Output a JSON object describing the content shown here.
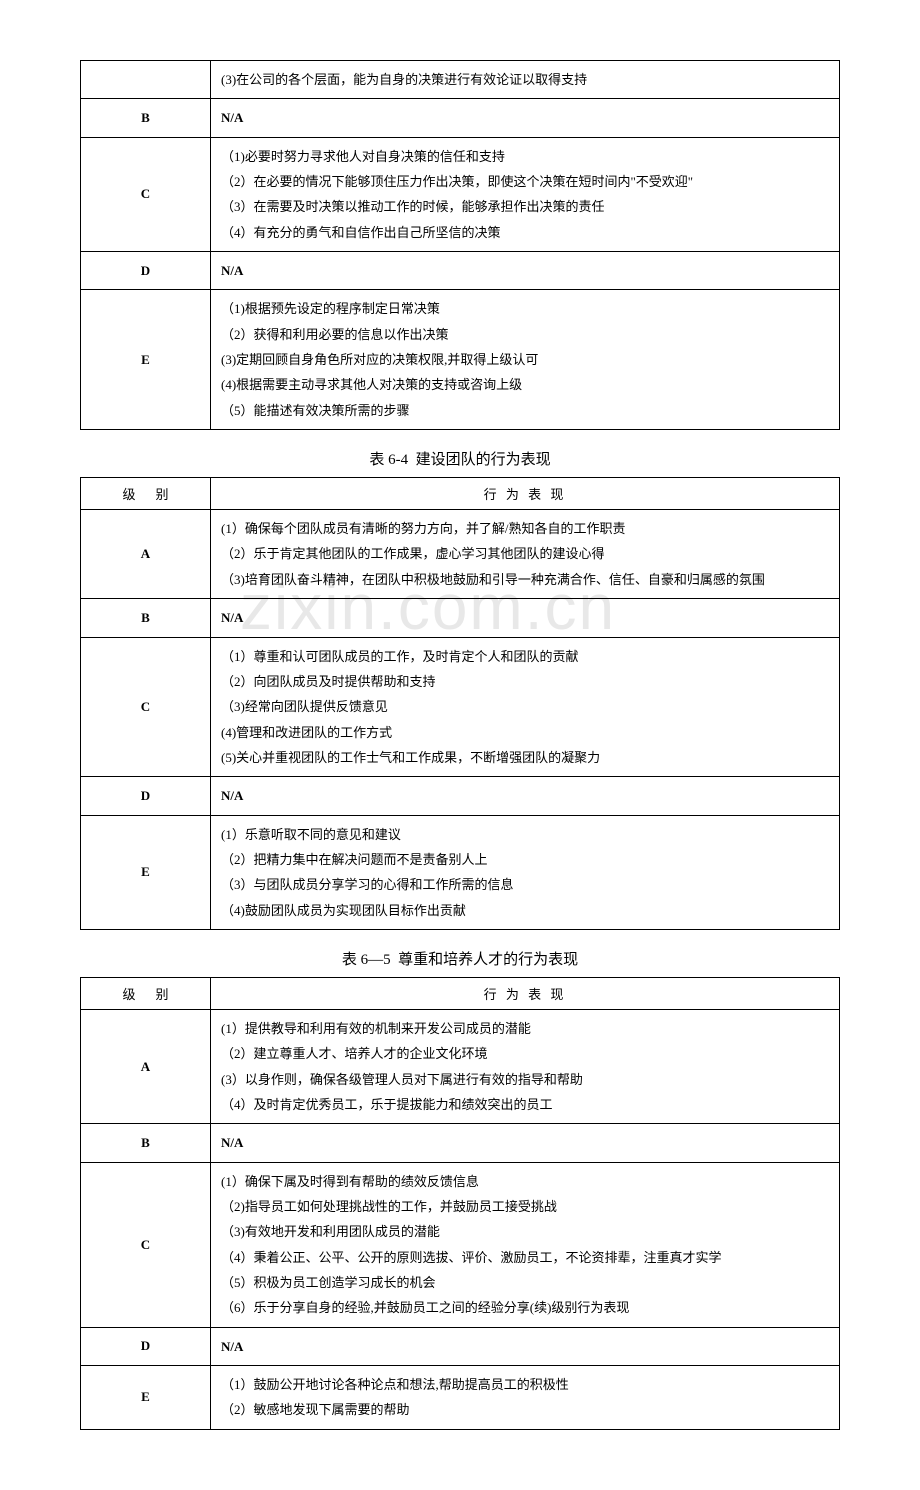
{
  "watermark_text": "zixin.com.cn",
  "table_first_partial": {
    "rows": [
      {
        "level": "",
        "merged_above": true,
        "behaviors": [
          "(3)在公司的各个层面，能为自身的决策进行有效论证以取得支持"
        ]
      },
      {
        "level": "B",
        "behaviors": [
          "N/A"
        ]
      },
      {
        "level": "C",
        "behaviors": [
          "（1)必要时努力寻求他人对自身决策的信任和支持",
          "（2）在必要的情况下能够顶住压力作出决策，即使这个决策在短时间内\"不受欢迎\"",
          "（3）在需要及时决策以推动工作的时候，能够承担作出决策的责任",
          "（4）有充分的勇气和自信作出自己所坚信的决策"
        ]
      },
      {
        "level": "D",
        "behaviors": [
          "N/A"
        ]
      },
      {
        "level": "E",
        "behaviors": [
          "（1)根据预先设定的程序制定日常决策",
          "（2）获得和利用必要的信息以作出决策",
          "(3)定期回顾自身角色所对应的决策权限,并取得上级认可",
          "(4)根据需要主动寻求其他人对决策的支持或咨询上级",
          "（5）能描述有效决策所需的步骤"
        ]
      }
    ]
  },
  "table_64": {
    "title_prefix": "表 6-4",
    "title_text": "建设团队的行为表现",
    "header": {
      "level": "级别",
      "behavior": "行 为 表 现"
    },
    "rows": [
      {
        "level": "A",
        "behaviors": [
          "(1）确保每个团队成员有清晰的努力方向，并了解/熟知各自的工作职责",
          "（2）乐于肯定其他团队的工作成果，虚心学习其他团队的建设心得",
          "（3)培育团队奋斗精神，在团队中积极地鼓励和引导一种充满合作、信任、自豪和归属感的氛围"
        ]
      },
      {
        "level": "B",
        "behaviors": [
          "N/A"
        ]
      },
      {
        "level": "C",
        "behaviors": [
          "（1）尊重和认可团队成员的工作，及时肯定个人和团队的贡献",
          "（2）向团队成员及时提供帮助和支持",
          "（3)经常向团队提供反馈意见",
          "(4)管理和改进团队的工作方式",
          "(5)关心并重视团队的工作士气和工作成果，不断增强团队的凝聚力"
        ]
      },
      {
        "level": "D",
        "behaviors": [
          "N/A"
        ]
      },
      {
        "level": "E",
        "behaviors": [
          "(1）乐意听取不同的意见和建议",
          "（2）把精力集中在解决问题而不是责备别人上",
          "（3）与团队成员分享学习的心得和工作所需的信息",
          "（4)鼓励团队成员为实现团队目标作出贡献"
        ]
      }
    ]
  },
  "table_65": {
    "title_prefix": "表 6—5",
    "title_text": "尊重和培养人才的行为表现",
    "header": {
      "level": "级别",
      "behavior": "行 为 表 现"
    },
    "rows": [
      {
        "level": "A",
        "behaviors": [
          "(1）提供教导和利用有效的机制来开发公司成员的潜能",
          "（2）建立尊重人才、培养人才的企业文化环境",
          "(3）以身作则，确保各级管理人员对下属进行有效的指导和帮助",
          "（4）及时肯定优秀员工，乐于提拔能力和绩效突出的员工"
        ]
      },
      {
        "level": "B",
        "behaviors": [
          "N/A"
        ]
      },
      {
        "level": "C",
        "behaviors": [
          "(1）确保下属及时得到有帮助的绩效反馈信息",
          "（2)指导员工如何处理挑战性的工作，并鼓励员工接受挑战",
          "（3)有效地开发和利用团队成员的潜能",
          "（4）秉着公正、公平、公开的原则选拔、评价、激励员工，不论资排辈，注重真才实学",
          "（5）积极为员工创造学习成长的机会",
          "（6）乐于分享自身的经验,并鼓励员工之间的经验分享(续)级别行为表现"
        ]
      },
      {
        "level": "D",
        "behaviors": [
          "N/A"
        ]
      },
      {
        "level": "E",
        "behaviors": [
          "（1）鼓励公开地讨论各种论点和想法,帮助提高员工的积极性",
          "（2）敏感地发现下属需要的帮助"
        ]
      }
    ]
  }
}
